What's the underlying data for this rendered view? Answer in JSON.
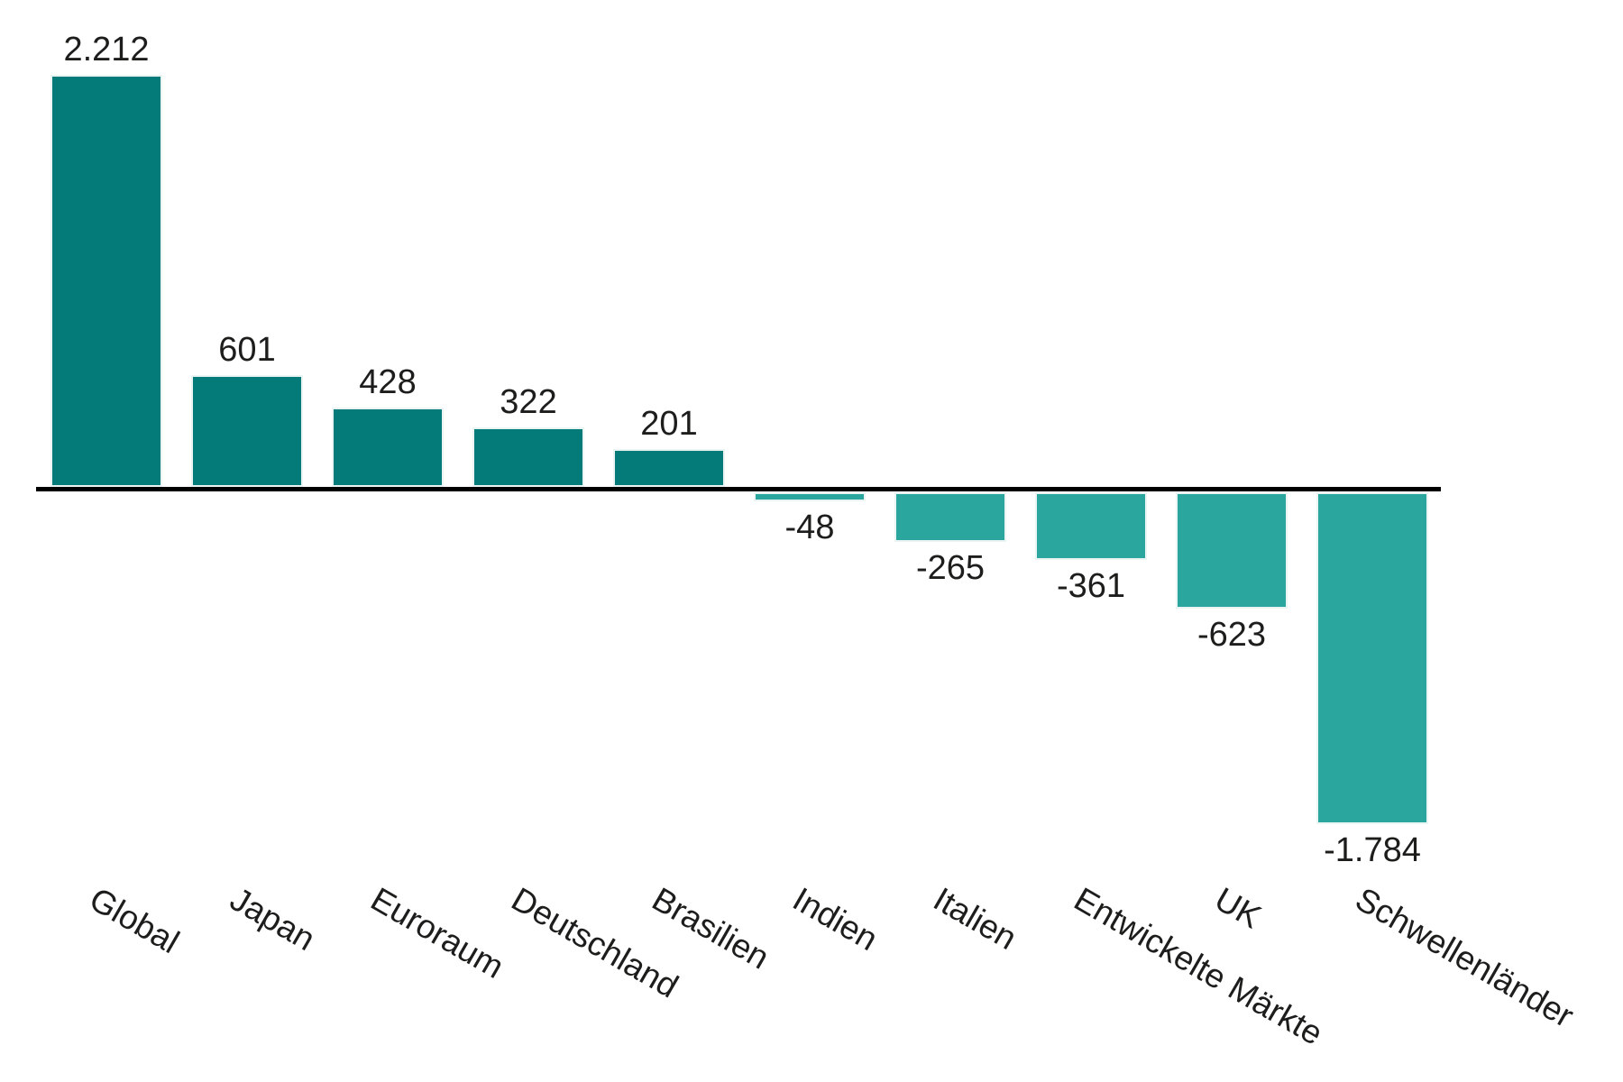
{
  "chart_data": {
    "type": "bar",
    "categories": [
      "Global",
      "Japan",
      "Euroraum",
      "Deutschland",
      "Brasilien",
      "Indien",
      "Italien",
      "Entwickelte Märkte",
      "UK",
      "Schwellenländer"
    ],
    "values": [
      2212,
      601,
      428,
      322,
      201,
      -48,
      -265,
      -361,
      -623,
      -1784
    ],
    "value_labels": [
      "2.212",
      "601",
      "428",
      "322",
      "201",
      "-48",
      "-265",
      "-361",
      "-623",
      "-1.784"
    ],
    "title": "",
    "xlabel": "",
    "ylabel": "",
    "ylim": [
      -1784,
      2212
    ],
    "grid": false,
    "legend": false,
    "baseline": 0,
    "category_label_rotation_deg": 30,
    "value_label_position": "outside-end",
    "colors": {
      "bar_positive": "#047b78",
      "bar_negative": "#2aa69f",
      "bar_stroke": "#e9f4f3",
      "axis_line": "#000000",
      "label_text": "#1d1d1b",
      "background": "#ffffff"
    }
  }
}
